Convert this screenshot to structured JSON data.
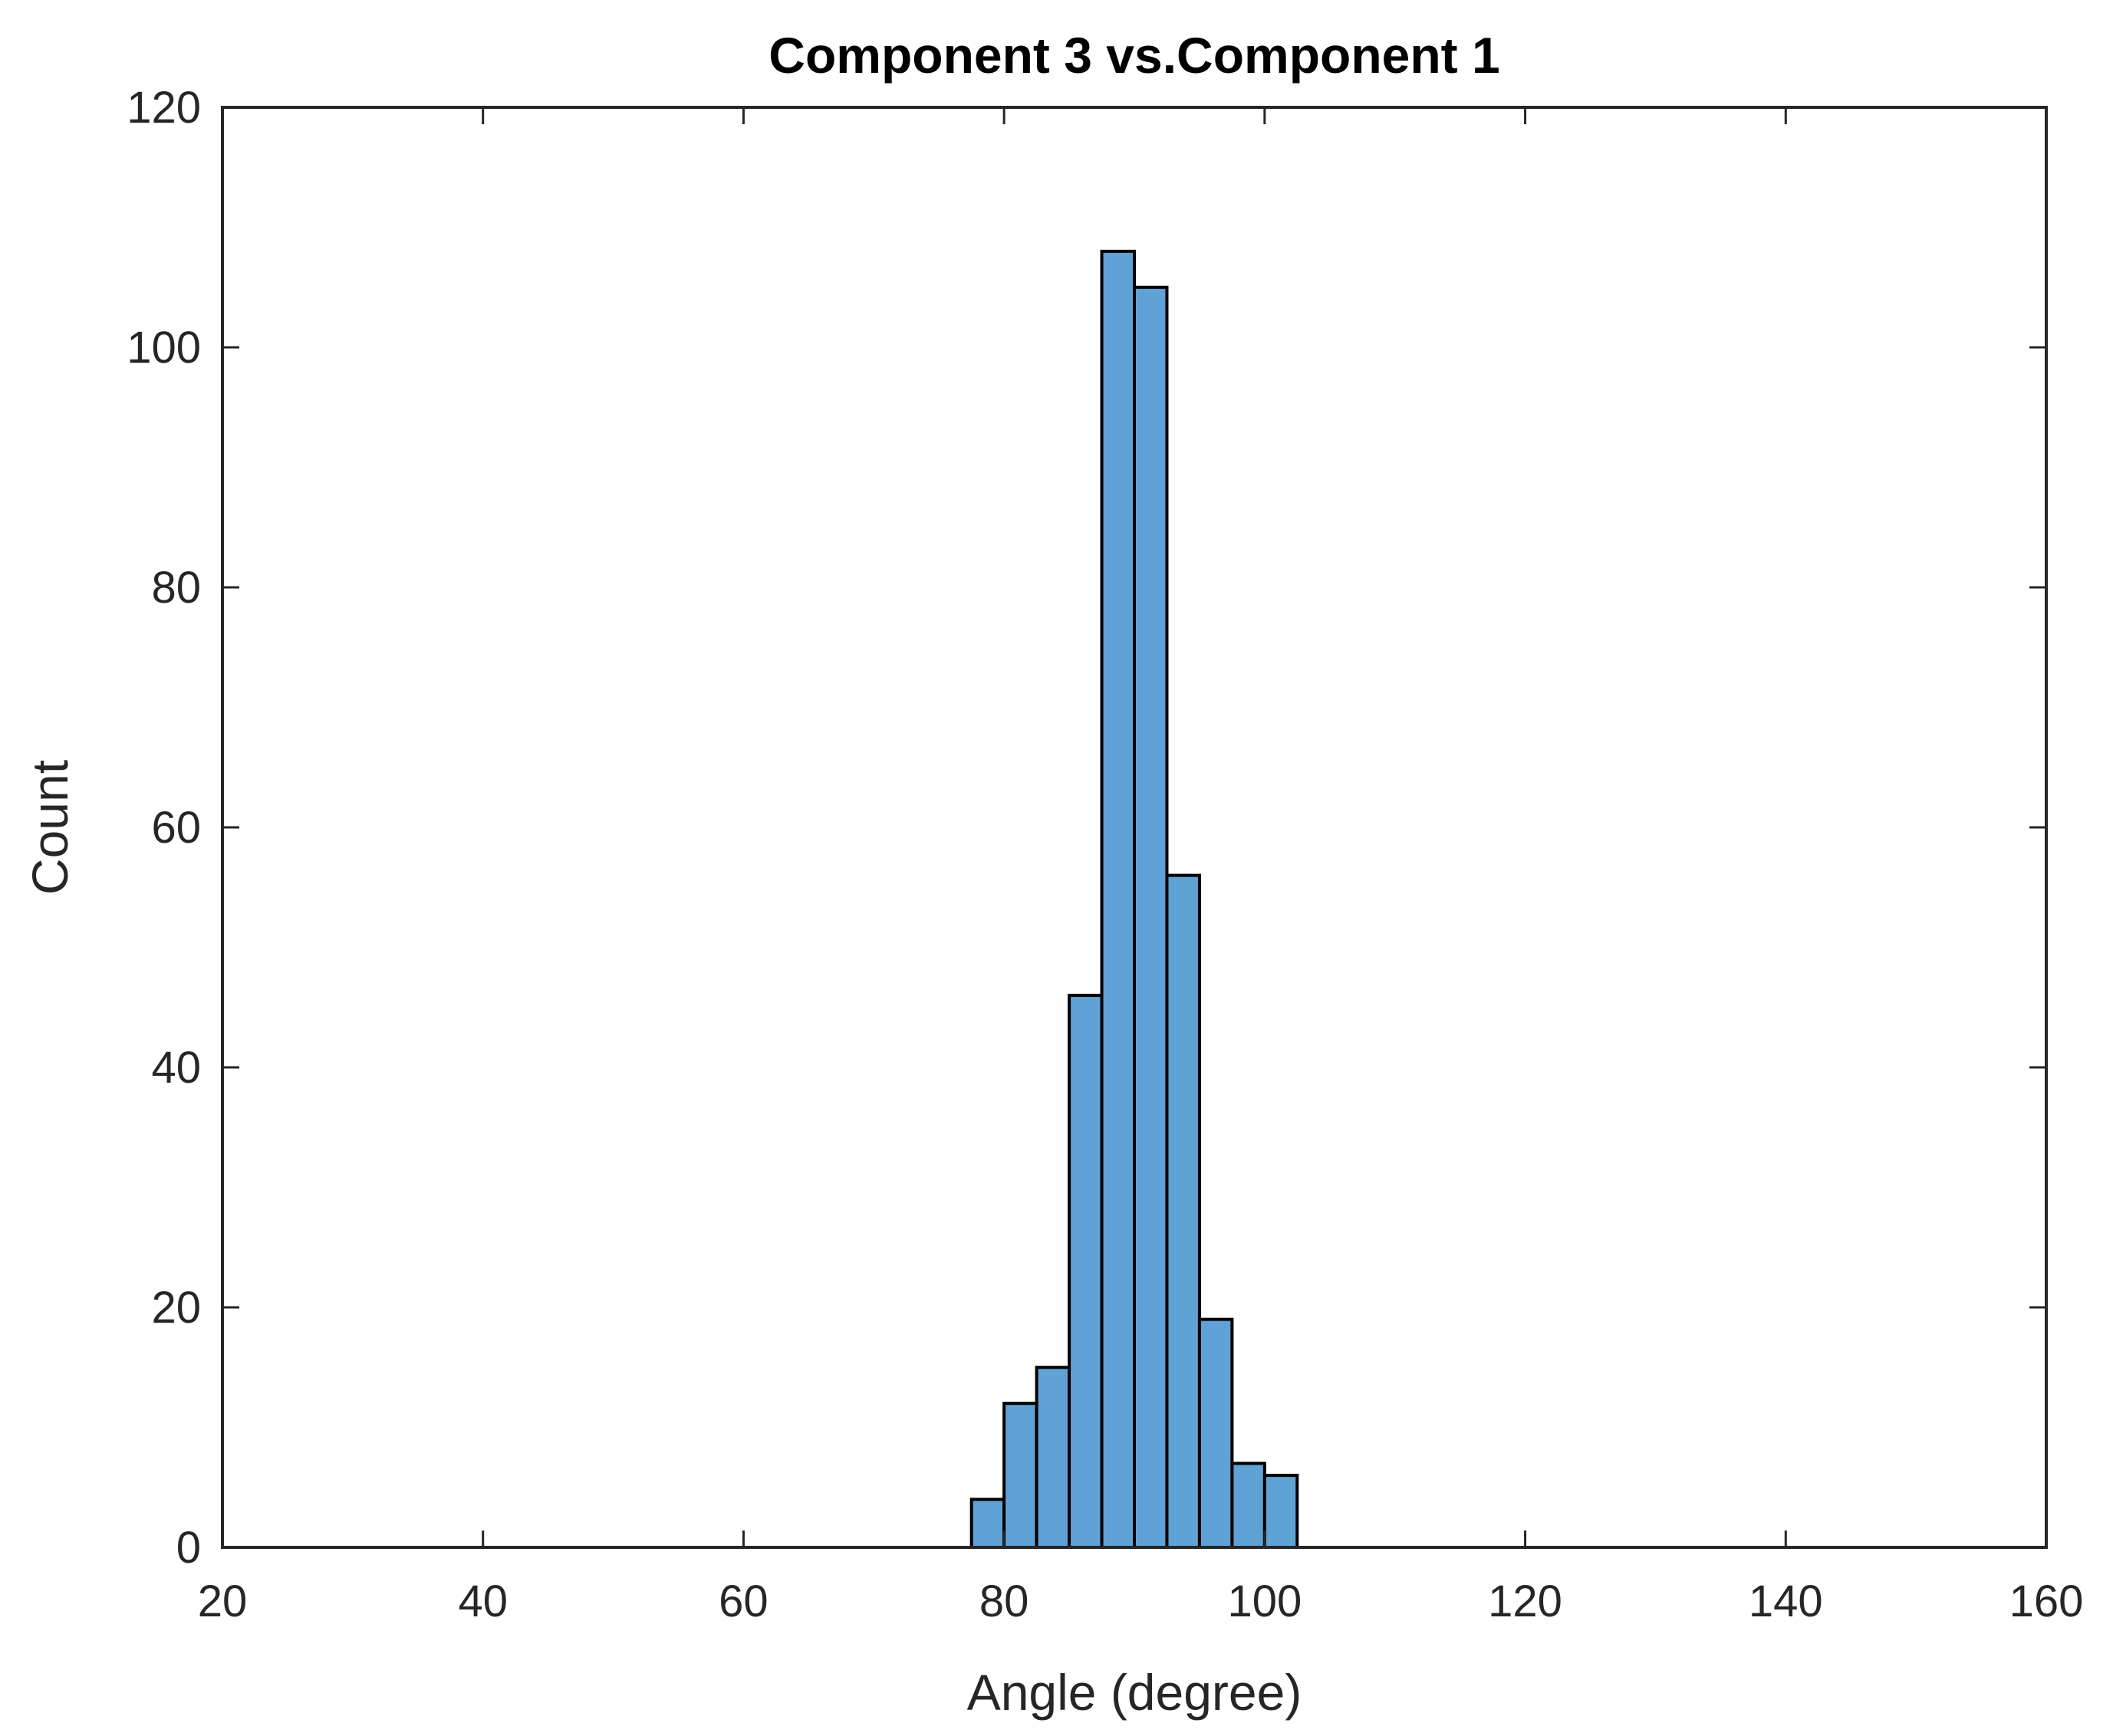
{
  "chart_data": {
    "type": "bar",
    "title": "Component 3 vs.Component 1",
    "xlabel": "Angle (degree)",
    "ylabel": "Count",
    "xlim": [
      20,
      160
    ],
    "ylim": [
      0,
      120
    ],
    "xticks": [
      20,
      40,
      60,
      80,
      100,
      120,
      140,
      160
    ],
    "yticks": [
      0,
      20,
      40,
      60,
      80,
      100,
      120
    ],
    "bin_width": 2.5,
    "bin_edges": [
      77.5,
      80,
      82.5,
      85,
      87.5,
      90,
      92.5,
      95,
      97.5,
      100,
      102.5
    ],
    "values": [
      4,
      12,
      15,
      46,
      108,
      105,
      56,
      19,
      7,
      6
    ],
    "grid": false,
    "legend": "none",
    "bar_color": "#5fa2d6",
    "edge_color": "#000000"
  }
}
